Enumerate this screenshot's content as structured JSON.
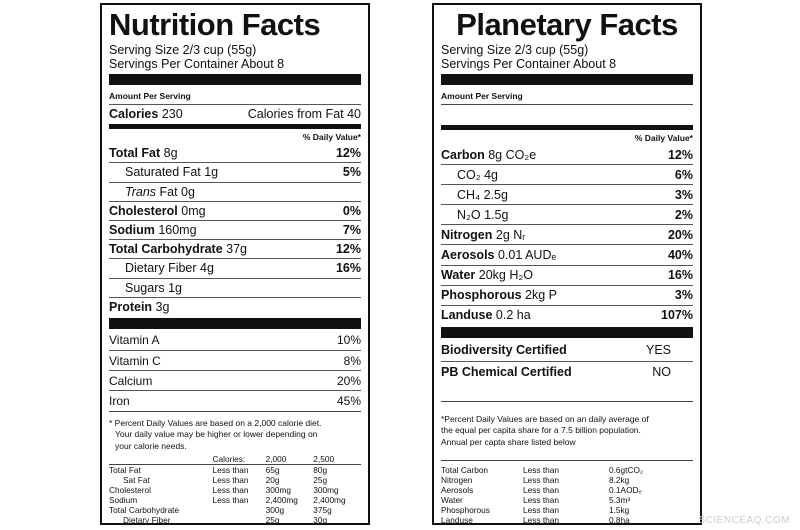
{
  "nutrition": {
    "title": "Nutrition Facts",
    "serving_size": "Serving Size 2/3 cup (55g)",
    "servings": "Servings Per Container About 8",
    "amount_per": "Amount Per Serving",
    "calories_label": "Calories",
    "calories_value": "230",
    "calories_fat": "Calories from Fat 40",
    "dv_header": "% Daily Value*",
    "nutrients": [
      {
        "name": "Total Fat",
        "amount": "8g",
        "dv": "12%",
        "bold": true,
        "indent": false
      },
      {
        "name": "Saturated Fat",
        "amount": "1g",
        "dv": "5%",
        "bold": false,
        "indent": true
      },
      {
        "name": "Trans",
        "amount": "Fat 0g",
        "dv": "",
        "bold": false,
        "indent": true,
        "italic": true
      },
      {
        "name": "Cholesterol",
        "amount": "0mg",
        "dv": "0%",
        "bold": true,
        "indent": false
      },
      {
        "name": "Sodium",
        "amount": "160mg",
        "dv": "7%",
        "bold": true,
        "indent": false
      },
      {
        "name": "Total Carbohydrate",
        "amount": "37g",
        "dv": "12%",
        "bold": true,
        "indent": false
      },
      {
        "name": "Dietary Fiber",
        "amount": "4g",
        "dv": "16%",
        "bold": false,
        "indent": true
      },
      {
        "name": "Sugars",
        "amount": "1g",
        "dv": "",
        "bold": false,
        "indent": true
      },
      {
        "name": "Protein",
        "amount": "3g",
        "dv": "",
        "bold": true,
        "indent": false
      }
    ],
    "vitamins": [
      {
        "name": "Vitamin A",
        "value": "10%"
      },
      {
        "name": "Vitamin C",
        "value": "8%"
      },
      {
        "name": "Calcium",
        "value": "20%"
      },
      {
        "name": "Iron",
        "value": "45%"
      }
    ],
    "footnote_1": "* Percent Daily Values are based on a 2,000 calorie diet.",
    "footnote_2": "Your daily value may be higher or lower depending on",
    "footnote_3": "your calorie needs.",
    "table_header": [
      "",
      "Calories:",
      "2,000",
      "2,500"
    ],
    "table_rows": [
      {
        "name": "Total Fat",
        "cmp": "Less than",
        "a": "65g",
        "b": "80g",
        "sub": false
      },
      {
        "name": "Sat Fat",
        "cmp": "Less than",
        "a": "20g",
        "b": "25g",
        "sub": true
      },
      {
        "name": "Cholesterol",
        "cmp": "Less than",
        "a": "300mg",
        "b": "300mg",
        "sub": false
      },
      {
        "name": "Sodium",
        "cmp": "Less than",
        "a": "2,400mg",
        "b": "2,400mg",
        "sub": false
      },
      {
        "name": "Total Carbohydrate",
        "cmp": "",
        "a": "300g",
        "b": "375g",
        "sub": false
      },
      {
        "name": "Dietary Fiber",
        "cmp": "",
        "a": "25g",
        "b": "30g",
        "sub": true
      }
    ]
  },
  "planetary": {
    "title": "Planetary Facts",
    "serving_size": "Serving Size 2/3 cup (55g)",
    "servings": "Servings Per Container About 8",
    "amount_per": "Amount Per Serving",
    "dv_header": "% Daily Value*",
    "nutrients": [
      {
        "name": "Carbon",
        "amount": "8g CO₂e",
        "dv": "12%",
        "bold": true,
        "indent": false
      },
      {
        "name": "",
        "amount": "CO₂ 4g",
        "dv": "6%",
        "bold": false,
        "indent": true
      },
      {
        "name": "",
        "amount": "CH₄ 2.5g",
        "dv": "3%",
        "bold": false,
        "indent": true
      },
      {
        "name": "",
        "amount": "N₂O 1.5g",
        "dv": "2%",
        "bold": false,
        "indent": true
      },
      {
        "name": "Nitrogen",
        "amount": "2g Nᵣ",
        "dv": "20%",
        "bold": true,
        "indent": false
      },
      {
        "name": "Aerosols",
        "amount": "0.01 AUDₑ",
        "dv": "40%",
        "bold": true,
        "indent": false
      },
      {
        "name": "Water",
        "amount": "20kg H₂O",
        "dv": "16%",
        "bold": true,
        "indent": false
      },
      {
        "name": "Phosphorous",
        "amount": "2kg P",
        "dv": "3%",
        "bold": true,
        "indent": false
      },
      {
        "name": "Landuse",
        "amount": "0.2 ha",
        "dv": "107%",
        "bold": true,
        "indent": false
      }
    ],
    "certs": [
      {
        "name": "Biodiversity Certified",
        "value": "YES"
      },
      {
        "name": "PB Chemical Certified",
        "value": "NO"
      }
    ],
    "footnote_1": "*Percent Daily Values are based on an daily average of",
    "footnote_2": "the equal per capita share for a 7.5 billion population.",
    "footnote_3": "Annual per capta share listed below",
    "table_rows": [
      {
        "name": "Total Carbon",
        "cmp": "Less than",
        "a": "0.6gtCO₂"
      },
      {
        "name": "Nitrogen",
        "cmp": "Less than",
        "a": "8.2kg"
      },
      {
        "name": "Aerosols",
        "cmp": "Less than",
        "a": "0.1AODₑ"
      },
      {
        "name": "Water",
        "cmp": "Less than",
        "a": "5.3m³"
      },
      {
        "name": "Phosphorous",
        "cmp": "Less than",
        "a": "1.5kg"
      },
      {
        "name": "Landuse",
        "cmp": "Less than",
        "a": "0.8ha"
      }
    ]
  },
  "watermark": "SCIENCEAQ.COM"
}
